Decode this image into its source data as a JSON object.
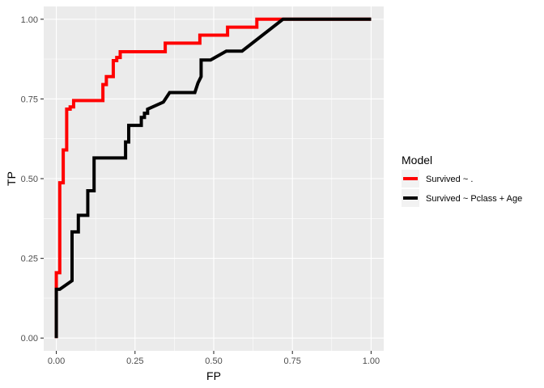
{
  "chart_data": {
    "type": "line",
    "xlabel": "FP",
    "ylabel": "TP",
    "xlim": [
      -0.04,
      1.04
    ],
    "ylim": [
      -0.04,
      1.04
    ],
    "x_ticks": [
      "0.00",
      "0.25",
      "0.50",
      "0.75",
      "1.00"
    ],
    "y_ticks": [
      "0.00",
      "0.25",
      "0.50",
      "0.75",
      "1.00"
    ],
    "grid": true,
    "legend": {
      "title": "Model",
      "placement": "right"
    },
    "series": [
      {
        "name": "Survived ~ .",
        "color": "#ff0000",
        "x": [
          0,
          0,
          0.011,
          0.011,
          0.022,
          0.022,
          0.033,
          0.033,
          0.044,
          0.044,
          0.055,
          0.055,
          0.066,
          0.066,
          0.148,
          0.148,
          0.159,
          0.159,
          0.181,
          0.181,
          0.192,
          0.192,
          0.203,
          0.203,
          0.214,
          0.214,
          0.346,
          0.346,
          0.456,
          0.456,
          0.544,
          0.544,
          0.637,
          0.637,
          0.725,
          1.0
        ],
        "y": [
          0,
          0.205,
          0.205,
          0.487,
          0.487,
          0.59,
          0.59,
          0.718,
          0.718,
          0.725,
          0.725,
          0.745,
          0.745,
          0.745,
          0.745,
          0.795,
          0.795,
          0.82,
          0.82,
          0.87,
          0.87,
          0.88,
          0.88,
          0.898,
          0.898,
          0.898,
          0.898,
          0.925,
          0.925,
          0.95,
          0.95,
          0.975,
          0.975,
          1.0,
          1.0,
          1.0
        ]
      },
      {
        "name": "Survived ~ Pclass + Age",
        "color": "#000000",
        "x": [
          0,
          0,
          0.011,
          0.011,
          0.05,
          0.05,
          0.06,
          0.06,
          0.07,
          0.07,
          0.1,
          0.1,
          0.12,
          0.12,
          0.22,
          0.22,
          0.23,
          0.23,
          0.27,
          0.27,
          0.28,
          0.28,
          0.29,
          0.29,
          0.34,
          0.36,
          0.44,
          0.45,
          0.46,
          0.46,
          0.49,
          0.49,
          0.54,
          0.59,
          0.72,
          1.0
        ],
        "y": [
          0,
          0.153,
          0.153,
          0.153,
          0.18,
          0.333,
          0.333,
          0.333,
          0.333,
          0.385,
          0.385,
          0.462,
          0.462,
          0.565,
          0.565,
          0.615,
          0.615,
          0.667,
          0.667,
          0.692,
          0.692,
          0.705,
          0.705,
          0.718,
          0.74,
          0.77,
          0.77,
          0.8,
          0.82,
          0.872,
          0.872,
          0.872,
          0.9,
          0.9,
          1.0,
          1.0
        ]
      }
    ]
  }
}
